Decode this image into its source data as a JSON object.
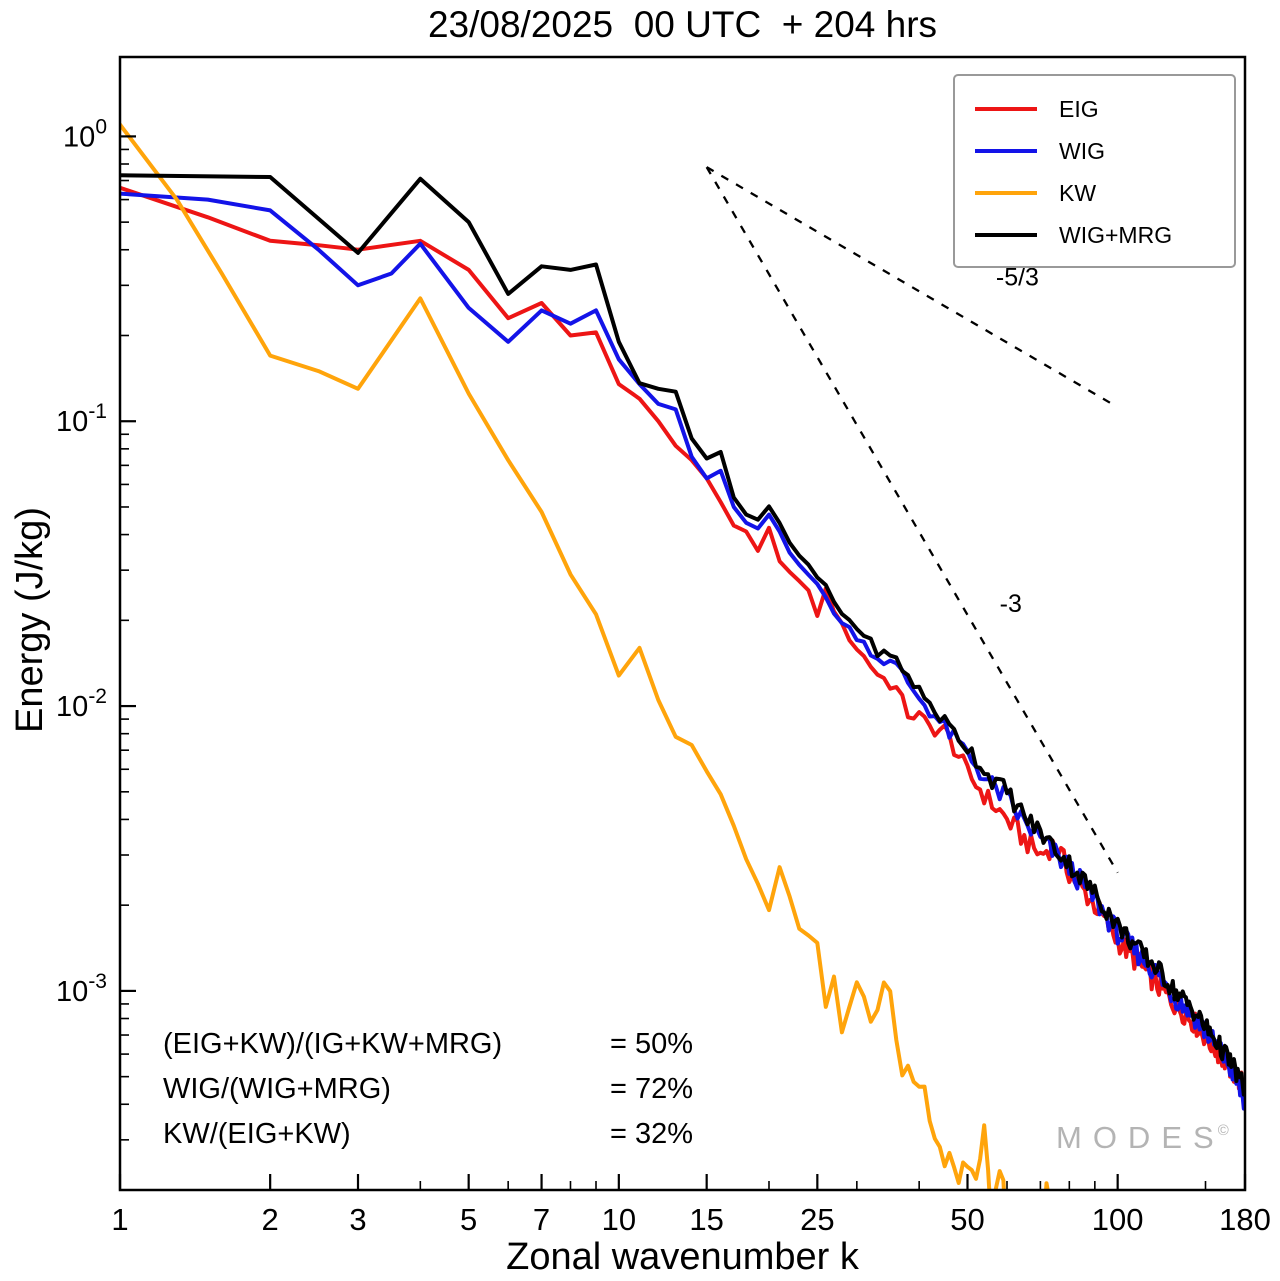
{
  "title": "23/08/2025  00 UTC  + 204 hrs",
  "watermark": {
    "text": "MODES",
    "symbol": "©"
  },
  "ratios": {
    "rows": [
      {
        "formula": "(EIG+KW)/(IG+KW+MRG)",
        "value": "= 50%"
      },
      {
        "formula": "WIG/(WIG+MRG)",
        "value": "= 72%"
      },
      {
        "formula": "KW/(EIG+KW)",
        "value": "= 32%"
      }
    ]
  },
  "chart_data": {
    "type": "line",
    "title": "23/08/2025  00 UTC  + 204 hrs",
    "xlabel": "Zonal wavenumber k",
    "ylabel": "Energy  (J/kg)",
    "xscale": "log",
    "yscale": "log",
    "xlim": [
      1,
      180
    ],
    "ylim": [
      0.0002,
      1.9
    ],
    "grid": false,
    "legend_position": "top-right",
    "x_major_ticks": [
      1,
      2,
      3,
      5,
      7,
      10,
      15,
      25,
      50,
      100,
      180
    ],
    "x_minor_ticks": [
      4,
      6,
      8,
      9,
      20,
      30,
      40,
      60,
      70,
      80,
      90,
      150
    ],
    "y_major_ticks": [
      1,
      0.1,
      0.01,
      0.001
    ],
    "series": [
      {
        "name": "EIG",
        "color": "#ed1515",
        "noise": 0.04,
        "points": [
          [
            1,
            0.66
          ],
          [
            1.5,
            0.52
          ],
          [
            2,
            0.43
          ],
          [
            2.5,
            0.415
          ],
          [
            3,
            0.4
          ],
          [
            4,
            0.43
          ],
          [
            5,
            0.34
          ],
          [
            6,
            0.23
          ],
          [
            7,
            0.26
          ],
          [
            8,
            0.2
          ],
          [
            9,
            0.205
          ],
          [
            10,
            0.135
          ],
          [
            11,
            0.12
          ],
          [
            12,
            0.1
          ],
          [
            13,
            0.082
          ],
          [
            14,
            0.073
          ],
          [
            15,
            0.063
          ],
          [
            16,
            0.052
          ],
          [
            17,
            0.043
          ],
          [
            18,
            0.041
          ],
          [
            19,
            0.035
          ],
          [
            20,
            0.042
          ],
          [
            21,
            0.032
          ],
          [
            22,
            0.03
          ],
          [
            24,
            0.025
          ],
          [
            25,
            0.021
          ],
          [
            26,
            0.0255
          ],
          [
            28,
            0.019
          ],
          [
            30,
            0.016
          ],
          [
            33,
            0.013
          ],
          [
            36,
            0.0115
          ],
          [
            38,
            0.0094
          ],
          [
            40,
            0.0092
          ],
          [
            42,
            0.0084
          ],
          [
            45,
            0.0082
          ],
          [
            48,
            0.0067
          ],
          [
            50,
            0.0058
          ],
          [
            55,
            0.0047
          ],
          [
            60,
            0.004
          ],
          [
            65,
            0.0034
          ],
          [
            70,
            0.003
          ],
          [
            75,
            0.0033
          ],
          [
            80,
            0.0026
          ],
          [
            90,
            0.002
          ],
          [
            100,
            0.0015
          ],
          [
            110,
            0.00125
          ],
          [
            120,
            0.00105
          ],
          [
            130,
            0.0009
          ],
          [
            140,
            0.0008
          ],
          [
            150,
            0.00069
          ],
          [
            160,
            0.0006
          ],
          [
            170,
            0.00052
          ],
          [
            180,
            0.00046
          ]
        ]
      },
      {
        "name": "WIG",
        "color": "#1313e8",
        "noise": 0.04,
        "points": [
          [
            1,
            0.63
          ],
          [
            1.5,
            0.6
          ],
          [
            2,
            0.55
          ],
          [
            2.5,
            0.4
          ],
          [
            3,
            0.3
          ],
          [
            3.5,
            0.33
          ],
          [
            4,
            0.42
          ],
          [
            5,
            0.25
          ],
          [
            6,
            0.19
          ],
          [
            7,
            0.245
          ],
          [
            8,
            0.22
          ],
          [
            9,
            0.245
          ],
          [
            10,
            0.165
          ],
          [
            11,
            0.135
          ],
          [
            12,
            0.115
          ],
          [
            13,
            0.11
          ],
          [
            14,
            0.075
          ],
          [
            15,
            0.063
          ],
          [
            16,
            0.067
          ],
          [
            17,
            0.05
          ],
          [
            18,
            0.044
          ],
          [
            19,
            0.042
          ],
          [
            20,
            0.047
          ],
          [
            21,
            0.041
          ],
          [
            22,
            0.035
          ],
          [
            24,
            0.029
          ],
          [
            26,
            0.024
          ],
          [
            28,
            0.0195
          ],
          [
            30,
            0.0177
          ],
          [
            33,
            0.0148
          ],
          [
            36,
            0.0138
          ],
          [
            40,
            0.0107
          ],
          [
            45,
            0.0084
          ],
          [
            50,
            0.0068
          ],
          [
            55,
            0.0054
          ],
          [
            60,
            0.0047
          ],
          [
            65,
            0.0039
          ],
          [
            70,
            0.0034
          ],
          [
            80,
            0.0027
          ],
          [
            90,
            0.0021
          ],
          [
            100,
            0.0016
          ],
          [
            110,
            0.00135
          ],
          [
            120,
            0.00115
          ],
          [
            130,
            0.00095
          ],
          [
            140,
            0.00085
          ],
          [
            150,
            0.00072
          ],
          [
            160,
            0.00062
          ],
          [
            170,
            0.00052
          ],
          [
            180,
            0.0004
          ]
        ]
      },
      {
        "name": "KW",
        "color": "#ffa40b",
        "noise": 0.1,
        "points": [
          [
            1,
            1.1
          ],
          [
            1.3,
            0.6
          ],
          [
            1.6,
            0.33
          ],
          [
            2,
            0.17
          ],
          [
            2.5,
            0.15
          ],
          [
            3,
            0.13
          ],
          [
            4,
            0.27
          ],
          [
            5,
            0.125
          ],
          [
            6,
            0.073
          ],
          [
            7,
            0.048
          ],
          [
            8,
            0.029
          ],
          [
            9,
            0.021
          ],
          [
            10,
            0.0128
          ],
          [
            11,
            0.016
          ],
          [
            12,
            0.0105
          ],
          [
            13,
            0.0078
          ],
          [
            14,
            0.0073
          ],
          [
            15,
            0.0059
          ],
          [
            16,
            0.0049
          ],
          [
            17,
            0.0038
          ],
          [
            18,
            0.0029
          ],
          [
            19,
            0.0024
          ],
          [
            20,
            0.00195
          ],
          [
            21,
            0.0027
          ],
          [
            22,
            0.0021
          ],
          [
            23,
            0.0017
          ],
          [
            25,
            0.00155
          ],
          [
            26,
            0.00082
          ],
          [
            27,
            0.0012
          ],
          [
            28,
            0.00068
          ],
          [
            29,
            0.0009
          ],
          [
            30,
            0.00102
          ],
          [
            32,
            0.00078
          ],
          [
            34,
            0.0011
          ],
          [
            35,
            0.00095
          ],
          [
            36,
            0.0006
          ],
          [
            38,
            0.00052
          ],
          [
            40,
            0.00048
          ],
          [
            42,
            0.0004
          ],
          [
            44,
            0.00031
          ],
          [
            45,
            0.00025
          ],
          [
            46,
            0.00029
          ],
          [
            48,
            0.00022
          ],
          [
            50,
            0.00026
          ],
          [
            52,
            0.00021
          ],
          [
            54,
            0.00029
          ],
          [
            56,
            0.00016
          ],
          [
            58,
            0.00023
          ],
          [
            60,
            0.00013
          ],
          [
            70,
            0.00012
          ],
          [
            72,
            0.00021
          ],
          [
            74,
            0.00012
          ]
        ]
      },
      {
        "name": "WIG+MRG",
        "color": "#000000",
        "noise": 0.035,
        "points": [
          [
            1,
            0.73
          ],
          [
            2,
            0.72
          ],
          [
            3,
            0.39
          ],
          [
            4,
            0.71
          ],
          [
            5,
            0.5
          ],
          [
            6,
            0.28
          ],
          [
            7,
            0.35
          ],
          [
            8,
            0.34
          ],
          [
            9,
            0.355
          ],
          [
            10,
            0.19
          ],
          [
            11,
            0.136
          ],
          [
            12,
            0.13
          ],
          [
            13,
            0.127
          ],
          [
            14,
            0.087
          ],
          [
            15,
            0.074
          ],
          [
            16,
            0.078
          ],
          [
            17,
            0.054
          ],
          [
            18,
            0.047
          ],
          [
            19,
            0.045
          ],
          [
            20,
            0.05
          ],
          [
            21,
            0.044
          ],
          [
            22,
            0.037
          ],
          [
            24,
            0.031
          ],
          [
            26,
            0.026
          ],
          [
            28,
            0.021
          ],
          [
            30,
            0.019
          ],
          [
            33,
            0.0156
          ],
          [
            36,
            0.0145
          ],
          [
            40,
            0.0113
          ],
          [
            45,
            0.0088
          ],
          [
            50,
            0.0072
          ],
          [
            55,
            0.0057
          ],
          [
            60,
            0.005
          ],
          [
            65,
            0.0041
          ],
          [
            70,
            0.0036
          ],
          [
            80,
            0.0028
          ],
          [
            90,
            0.0022
          ],
          [
            100,
            0.0017
          ],
          [
            110,
            0.0014
          ],
          [
            120,
            0.0012
          ],
          [
            130,
            0.001
          ],
          [
            140,
            0.00088
          ],
          [
            150,
            0.00075
          ],
          [
            160,
            0.00064
          ],
          [
            170,
            0.00055
          ],
          [
            180,
            0.00045
          ]
        ]
      }
    ],
    "reference_lines": [
      {
        "label": "-5/3",
        "from": [
          15,
          0.78
        ],
        "to": [
          100,
          0.112
        ],
        "label_at": [
          57,
          0.3
        ]
      },
      {
        "label": "-3",
        "from": [
          15,
          0.78
        ],
        "to": [
          100,
          0.0026
        ],
        "label_at": [
          58,
          0.0214
        ]
      }
    ]
  }
}
